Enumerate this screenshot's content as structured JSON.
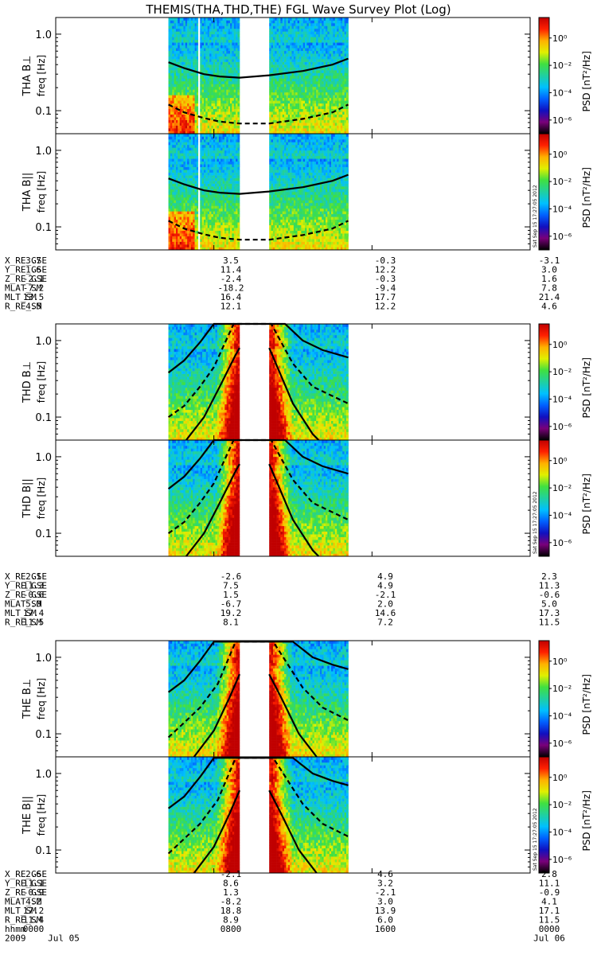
{
  "title": "THEMIS(THA,THD,THE) FGL Wave Survey Plot (Log)",
  "stamp": "Sat Sep 15 17:27:05 2012",
  "colorbar": {
    "label": "PSD [nT²/Hz]",
    "ticks": [
      "10⁰",
      "10⁻²",
      "10⁻⁴",
      "10⁻⁶"
    ],
    "tick_exponents": [
      0,
      -2,
      -4,
      -6
    ],
    "range_exponents": [
      -7,
      1.5
    ],
    "colors": [
      "#000000",
      "#7a007a",
      "#1010c0",
      "#0060ff",
      "#00c0ff",
      "#20d0a0",
      "#40e040",
      "#e0f000",
      "#ffb000",
      "#ff2000",
      "#c00000"
    ]
  },
  "y_ticks": [
    "1.0",
    "0.1"
  ],
  "y_tick_values": [
    1.0,
    0.1
  ],
  "y_range_hz": [
    0.05,
    1.65
  ],
  "time_axis": {
    "range_hours": [
      0,
      24
    ],
    "ticks_hours": [
      0,
      8,
      16,
      24
    ],
    "hhmm": [
      "0000",
      "0800",
      "1600",
      "0000"
    ],
    "dates": [
      "Jul 05",
      "",
      "",
      "Jul 06"
    ],
    "year": "2009"
  },
  "panels": [
    {
      "label": "THA B⊥",
      "probe": "THA",
      "comp": "perp"
    },
    {
      "label": "THA B||",
      "probe": "THA",
      "comp": "par"
    },
    {
      "label": "THD B⊥",
      "probe": "THD",
      "comp": "perp"
    },
    {
      "label": "THD B||",
      "probe": "THD",
      "comp": "par"
    },
    {
      "label": "THE B⊥",
      "probe": "THE",
      "comp": "perp"
    },
    {
      "label": "THE B||",
      "probe": "THE",
      "comp": "par"
    }
  ],
  "freq_label": "freq [Hz]",
  "ephem_row_labels": [
    "X_RE_GSE",
    "Y_RE_GSE",
    "Z_RE_GSE",
    "MLAT_SM",
    "MLT_SM",
    "R_RE_SM"
  ],
  "time_row_labels": [
    "hhmm",
    "2009"
  ],
  "ephemeris": [
    {
      "probe": "THA",
      "values": [
        [
          "3.7",
          "3.5",
          "-0.3",
          "-3.1"
        ],
        [
          "1.6",
          "11.4",
          "12.2",
          "3.0"
        ],
        [
          "-2.1",
          "-2.4",
          "-0.3",
          "1.6"
        ],
        [
          "-7.2",
          "-18.2",
          "-9.4",
          "7.8"
        ],
        [
          "13.5",
          "16.4",
          "17.7",
          "21.4"
        ],
        [
          "4.5",
          "12.1",
          "12.2",
          "4.6"
        ]
      ]
    },
    {
      "probe": "THD",
      "values": [
        [
          "2.1",
          "-2.6",
          "4.9",
          "2.3"
        ],
        [
          "11.3",
          "7.5",
          "4.9",
          "11.3"
        ],
        [
          "-0.6",
          "1.5",
          "-2.1",
          "-0.6"
        ],
        [
          "5.0",
          "-6.7",
          "2.0",
          "5.0"
        ],
        [
          "17.4",
          "19.2",
          "14.6",
          "17.3"
        ],
        [
          "11.5",
          "8.1",
          "7.2",
          "11.5"
        ]
      ]
    },
    {
      "probe": "THE",
      "values": [
        [
          "2.6",
          "-2.1",
          "4.6",
          "2.8"
        ],
        [
          "11.1",
          "8.6",
          "3.2",
          "11.1"
        ],
        [
          "-0.9",
          "1.3",
          "-2.1",
          "-0.9"
        ],
        [
          "4.2",
          "-8.2",
          "3.0",
          "4.1"
        ],
        [
          "17.2",
          "18.8",
          "13.9",
          "17.1"
        ],
        [
          "11.4",
          "8.9",
          "6.0",
          "11.5"
        ]
      ]
    }
  ],
  "chart_data": {
    "type": "heatmap",
    "x_unit": "hours since 2009-07-05 00:00 UT",
    "xlim": [
      0,
      24
    ],
    "ylim_hz": [
      0.05,
      1.65
    ],
    "y_scale": "log",
    "z_scale": "log",
    "zlim_exp": [
      -7,
      1.5
    ],
    "data_segments_hours": {
      "THA": [
        [
          5.7,
          7.2
        ],
        [
          7.3,
          9.3
        ],
        [
          10.8,
          14.8
        ]
      ],
      "THD": [
        [
          5.7,
          9.3
        ],
        [
          10.8,
          14.8
        ]
      ],
      "THE": [
        [
          5.7,
          9.3
        ],
        [
          10.8,
          14.8
        ]
      ]
    },
    "line_series": {
      "THA": [
        {
          "style": "solid",
          "points": [
            [
              5.7,
              0.43
            ],
            [
              6.5,
              0.36
            ],
            [
              7.5,
              0.3
            ],
            [
              8.3,
              0.28
            ],
            [
              9.3,
              0.27
            ],
            [
              10.8,
              0.29
            ],
            [
              12.5,
              0.33
            ],
            [
              14.0,
              0.4
            ],
            [
              14.8,
              0.48
            ]
          ]
        },
        {
          "style": "dashed",
          "points": [
            [
              5.7,
              0.12
            ],
            [
              6.5,
              0.095
            ],
            [
              7.5,
              0.08
            ],
            [
              8.3,
              0.072
            ],
            [
              9.3,
              0.068
            ],
            [
              10.8,
              0.068
            ],
            [
              12.5,
              0.078
            ],
            [
              14.0,
              0.095
            ],
            [
              14.8,
              0.12
            ]
          ]
        }
      ],
      "THD": [
        {
          "style": "solid",
          "points": [
            [
              5.7,
              0.38
            ],
            [
              6.5,
              0.55
            ],
            [
              7.3,
              0.95
            ],
            [
              8.0,
              1.7
            ],
            [
              11.6,
              1.7
            ],
            [
              12.5,
              1.0
            ],
            [
              13.5,
              0.75
            ],
            [
              14.8,
              0.6
            ]
          ]
        },
        {
          "style": "dashed",
          "points": [
            [
              5.7,
              0.1
            ],
            [
              6.5,
              0.14
            ],
            [
              7.3,
              0.25
            ],
            [
              8.0,
              0.45
            ],
            [
              9.0,
              1.7
            ],
            [
              10.9,
              1.7
            ],
            [
              12.0,
              0.5
            ],
            [
              13.0,
              0.25
            ],
            [
              14.8,
              0.15
            ]
          ]
        },
        {
          "style": "solid",
          "points": [
            [
              6.6,
              0.05
            ],
            [
              7.5,
              0.1
            ],
            [
              8.3,
              0.25
            ],
            [
              9.1,
              0.65
            ],
            [
              9.3,
              0.8
            ]
          ]
        },
        {
          "style": "solid",
          "points": [
            [
              10.8,
              0.8
            ],
            [
              11.3,
              0.4
            ],
            [
              12.0,
              0.15
            ],
            [
              13.0,
              0.06
            ],
            [
              13.3,
              0.05
            ]
          ]
        }
      ],
      "THE": [
        {
          "style": "solid",
          "points": [
            [
              5.7,
              0.35
            ],
            [
              6.5,
              0.5
            ],
            [
              7.3,
              0.9
            ],
            [
              8.0,
              1.6
            ],
            [
              12.0,
              1.6
            ],
            [
              13.0,
              1.0
            ],
            [
              14.0,
              0.8
            ],
            [
              14.8,
              0.7
            ]
          ]
        },
        {
          "style": "dashed",
          "points": [
            [
              5.7,
              0.09
            ],
            [
              6.5,
              0.14
            ],
            [
              7.3,
              0.22
            ],
            [
              8.2,
              0.45
            ],
            [
              9.1,
              1.6
            ],
            [
              11.0,
              1.6
            ],
            [
              12.5,
              0.4
            ],
            [
              13.5,
              0.22
            ],
            [
              14.8,
              0.15
            ]
          ]
        },
        {
          "style": "solid",
          "points": [
            [
              7.0,
              0.05
            ],
            [
              8.0,
              0.11
            ],
            [
              8.8,
              0.3
            ],
            [
              9.3,
              0.6
            ]
          ]
        },
        {
          "style": "solid",
          "points": [
            [
              10.8,
              0.6
            ],
            [
              11.4,
              0.3
            ],
            [
              12.3,
              0.1
            ],
            [
              13.2,
              0.05
            ]
          ]
        }
      ]
    }
  }
}
